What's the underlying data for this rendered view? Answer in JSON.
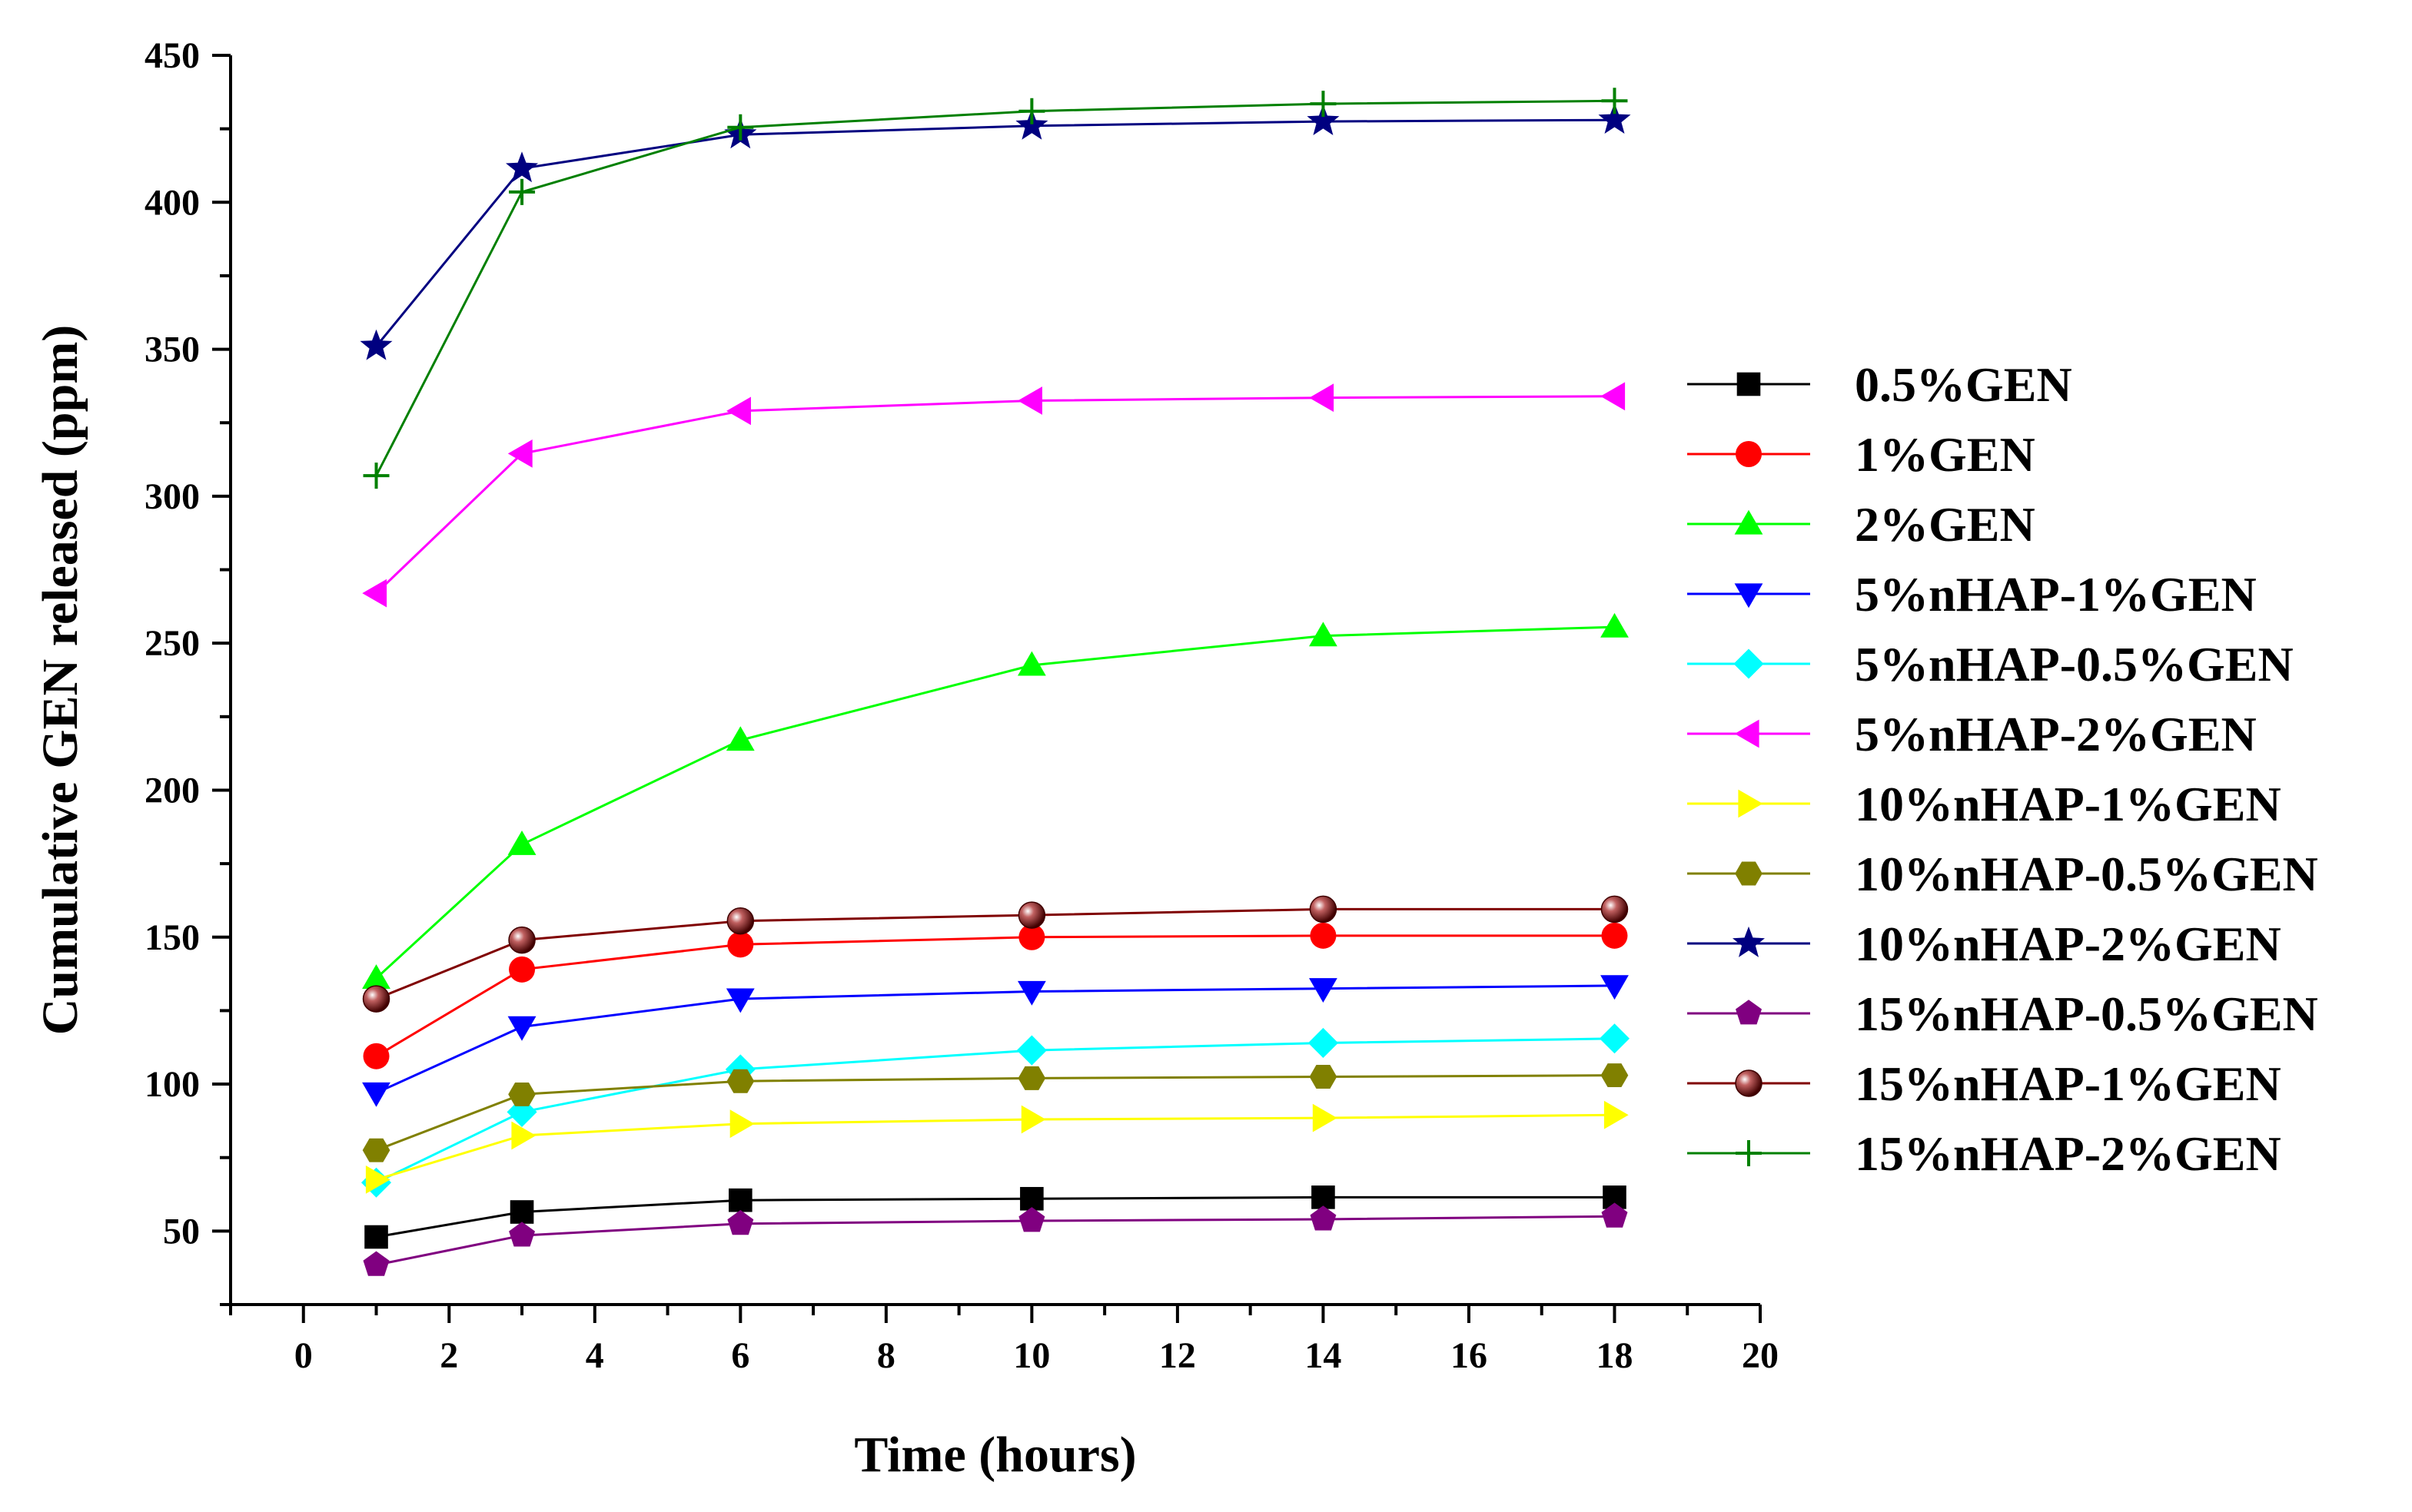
{
  "chart_data": {
    "type": "line",
    "title": "",
    "xlabel": "Time (hours)",
    "ylabel": "Cumulative GEN released (ppm)",
    "xlim": [
      -1,
      20
    ],
    "ylim": [
      25,
      450
    ],
    "x_ticks": [
      0,
      2,
      4,
      6,
      8,
      10,
      12,
      14,
      16,
      18,
      20
    ],
    "y_ticks": [
      50,
      100,
      150,
      200,
      250,
      300,
      350,
      400,
      450
    ],
    "grid": false,
    "legend_position": "right",
    "x": [
      1,
      3,
      6,
      10,
      14,
      18
    ],
    "series": [
      {
        "name": "0.5%GEN",
        "color": "#000000",
        "marker": "square",
        "values": [
          48,
          56.5,
          60.5,
          61,
          61.5,
          61.5
        ]
      },
      {
        "name": "1%GEN",
        "color": "#ff0000",
        "marker": "circle",
        "values": [
          109.5,
          139,
          147.5,
          150,
          150.5,
          150.5
        ]
      },
      {
        "name": "2%GEN",
        "color": "#00ff00",
        "marker": "triangle-up",
        "values": [
          136,
          181.5,
          217,
          242.5,
          252.5,
          255.5
        ]
      },
      {
        "name": "5%nHAP-1%GEN",
        "color": "#0000ff",
        "marker": "triangle-down",
        "values": [
          97,
          119.5,
          129,
          131.5,
          132.5,
          133.5
        ]
      },
      {
        "name": "5%nHAP-0.5%GEN",
        "color": "#00ffff",
        "marker": "diamond",
        "values": [
          66.5,
          90.5,
          105,
          111.5,
          114,
          115.5
        ]
      },
      {
        "name": "5%nHAP-2%GEN",
        "color": "#ff00ff",
        "marker": "triangle-left",
        "values": [
          267,
          314.5,
          329,
          332.5,
          333.5,
          334
        ]
      },
      {
        "name": "10%nHAP-1%GEN",
        "color": "#ffff00",
        "marker": "triangle-right",
        "values": [
          67.5,
          82.5,
          86.5,
          88,
          88.5,
          89.5
        ]
      },
      {
        "name": "10%nHAP-0.5%GEN",
        "color": "#808000",
        "marker": "hexagon",
        "values": [
          77.5,
          96.5,
          101,
          102,
          102.5,
          103
        ]
      },
      {
        "name": "10%nHAP-2%GEN",
        "color": "#000080",
        "marker": "star",
        "values": [
          351,
          411.5,
          423,
          426,
          427.5,
          428
        ]
      },
      {
        "name": "15%nHAP-0.5%GEN",
        "color": "#800080",
        "marker": "pentagon",
        "values": [
          38.5,
          48.5,
          52.5,
          53.5,
          54,
          55
        ]
      },
      {
        "name": "15%nHAP-1%GEN",
        "color": "#800000",
        "marker": "sphere",
        "values": [
          129,
          149,
          155.5,
          157.5,
          159.5,
          159.5
        ]
      },
      {
        "name": "15%nHAP-2%GEN",
        "color": "#008000",
        "marker": "plus",
        "values": [
          307,
          403.5,
          425.5,
          431,
          433.5,
          434.5
        ]
      }
    ]
  }
}
